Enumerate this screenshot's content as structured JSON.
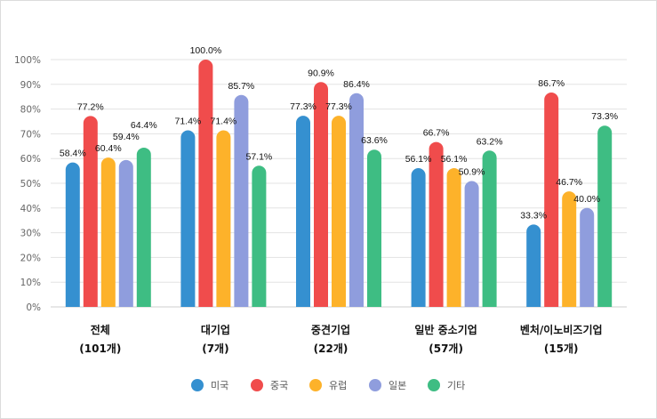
{
  "chart_data": {
    "type": "bar",
    "categories": [
      [
        "전체",
        "(101개)"
      ],
      [
        "대기업",
        "(7개)"
      ],
      [
        "중견기업",
        "(22개)"
      ],
      [
        "일반 중소기업",
        "(57개)"
      ],
      [
        "벤처/이노비즈기업",
        "(15개)"
      ]
    ],
    "series": [
      {
        "name": "미국",
        "color": "#3590d0",
        "values": [
          58.4,
          71.4,
          77.3,
          56.1,
          33.3
        ]
      },
      {
        "name": "중국",
        "color": "#f04c4c",
        "values": [
          77.2,
          100.0,
          90.9,
          66.7,
          86.7
        ]
      },
      {
        "name": "유럽",
        "color": "#fdb22a",
        "values": [
          60.4,
          71.4,
          77.3,
          56.1,
          46.7
        ]
      },
      {
        "name": "일본",
        "color": "#8f9ddd",
        "values": [
          59.4,
          85.7,
          86.4,
          50.9,
          40.0
        ]
      },
      {
        "name": "기타",
        "color": "#3ebd83",
        "values": [
          64.4,
          57.1,
          63.6,
          63.2,
          73.3
        ]
      }
    ],
    "yticks": [
      "0%",
      "10%",
      "20%",
      "30%",
      "40%",
      "50%",
      "60%",
      "70%",
      "80%",
      "90%",
      "100%"
    ],
    "ylim": [
      0,
      100
    ],
    "grid": true,
    "legend": "bottom",
    "value_suffix": "%"
  }
}
